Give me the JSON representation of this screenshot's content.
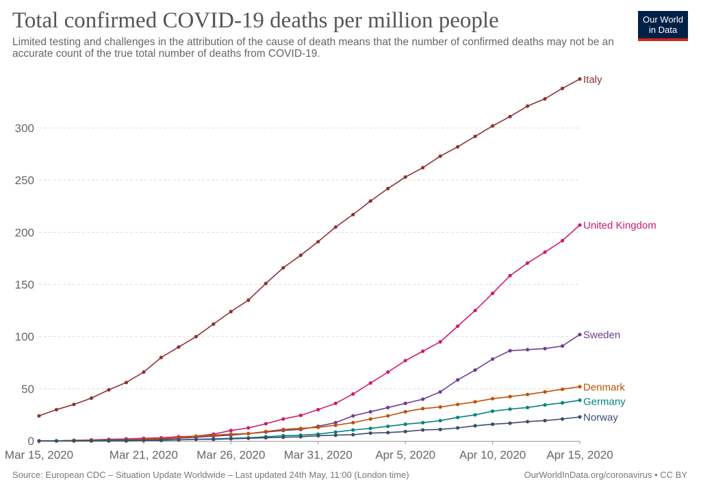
{
  "header": {
    "title": "Total confirmed COVID-19 deaths per million people",
    "subtitle": "Limited testing and challenges in the attribution of the cause of death means that the number of confirmed deaths may not be an accurate count of the true total number of deaths from COVID-19."
  },
  "logo": {
    "line1": "Our World",
    "line2": "in Data",
    "bg_color": "#002147",
    "accent_color": "#ce261e"
  },
  "footer": {
    "source": "Source: European CDC – Situation Update Worldwide – Last updated 24th May, 11:00 (London time)",
    "credit": "OurWorldInData.org/coronavirus • CC BY"
  },
  "chart_data": {
    "type": "line",
    "title": "Total confirmed COVID-19 deaths per million people",
    "xlabel": "",
    "ylabel": "",
    "x": [
      "2020-03-15",
      "2020-03-16",
      "2020-03-17",
      "2020-03-18",
      "2020-03-19",
      "2020-03-20",
      "2020-03-21",
      "2020-03-22",
      "2020-03-23",
      "2020-03-24",
      "2020-03-25",
      "2020-03-26",
      "2020-03-27",
      "2020-03-28",
      "2020-03-29",
      "2020-03-30",
      "2020-03-31",
      "2020-04-01",
      "2020-04-02",
      "2020-04-03",
      "2020-04-04",
      "2020-04-05",
      "2020-04-06",
      "2020-04-07",
      "2020-04-08",
      "2020-04-09",
      "2020-04-10",
      "2020-04-11",
      "2020-04-12",
      "2020-04-13",
      "2020-04-14",
      "2020-04-15"
    ],
    "x_ticks": [
      {
        "index": 0,
        "label": "Mar 15, 2020"
      },
      {
        "index": 6,
        "label": "Mar 21, 2020"
      },
      {
        "index": 11,
        "label": "Mar 26, 2020"
      },
      {
        "index": 16,
        "label": "Mar 31, 2020"
      },
      {
        "index": 21,
        "label": "Apr 5, 2020"
      },
      {
        "index": 26,
        "label": "Apr 10, 2020"
      },
      {
        "index": 31,
        "label": "Apr 15, 2020"
      }
    ],
    "y_ticks": [
      0,
      50,
      100,
      150,
      200,
      250,
      300
    ],
    "ylim": [
      0,
      350
    ],
    "grid": true,
    "legend": "end-of-line labels",
    "series": [
      {
        "name": "Italy",
        "color": "#8c3232",
        "values": [
          24,
          30,
          35,
          41,
          49,
          56,
          66,
          80,
          90,
          100,
          112,
          124,
          135,
          151,
          166,
          178,
          191,
          205,
          217,
          230,
          242,
          253,
          262,
          273,
          282,
          292,
          302,
          311,
          321,
          328,
          338,
          347
        ]
      },
      {
        "name": "United Kingdom",
        "color": "#cc1a6e",
        "values": [
          0,
          0,
          0.5,
          1,
          1.5,
          2,
          2.5,
          3,
          4,
          4.5,
          6.5,
          10,
          12.5,
          16.5,
          21,
          24.5,
          30,
          36,
          45,
          55.5,
          66,
          77,
          86,
          95,
          110,
          125,
          141.5,
          158.5,
          170.5,
          181,
          192,
          207
        ]
      },
      {
        "name": "Sweden",
        "color": "#6d3e91",
        "values": [
          0,
          0,
          0.5,
          0.5,
          1,
          1,
          1,
          1.5,
          2.5,
          3.5,
          4.5,
          5.5,
          7,
          8.5,
          10,
          11,
          14,
          17.5,
          24,
          28,
          32,
          36,
          40,
          47,
          58.5,
          68,
          78.5,
          86.5,
          87.5,
          88.5,
          91,
          102
        ]
      },
      {
        "name": "Denmark",
        "color": "#c15000",
        "values": [
          0,
          0,
          0.5,
          0.5,
          1,
          1,
          1.5,
          2,
          3,
          4.5,
          5.5,
          6.5,
          7,
          9,
          11,
          12,
          13,
          15,
          17.5,
          21,
          24,
          28,
          31,
          32.5,
          35,
          37.5,
          40.5,
          42.5,
          44.5,
          47,
          49.5,
          52
        ]
      },
      {
        "name": "Germany",
        "color": "#00847e",
        "values": [
          0,
          0,
          0,
          0,
          0.5,
          0.5,
          0.5,
          1,
          1,
          1.5,
          2,
          2.5,
          3,
          4,
          5,
          5.5,
          6.5,
          8.5,
          10.5,
          12,
          14,
          16,
          17.5,
          19.5,
          22.5,
          25,
          28.5,
          30.5,
          32,
          34.5,
          36.5,
          39
        ]
      },
      {
        "name": "Norway",
        "color": "#3d4a6b",
        "values": [
          0,
          0,
          0,
          0,
          0,
          0,
          0.5,
          0.5,
          1,
          1.5,
          1.5,
          2,
          2.5,
          3,
          3.5,
          4,
          5,
          5.5,
          6,
          7.5,
          8,
          9,
          10.5,
          11,
          12.5,
          14.5,
          16,
          17,
          18.5,
          19.5,
          21,
          23
        ]
      }
    ]
  }
}
